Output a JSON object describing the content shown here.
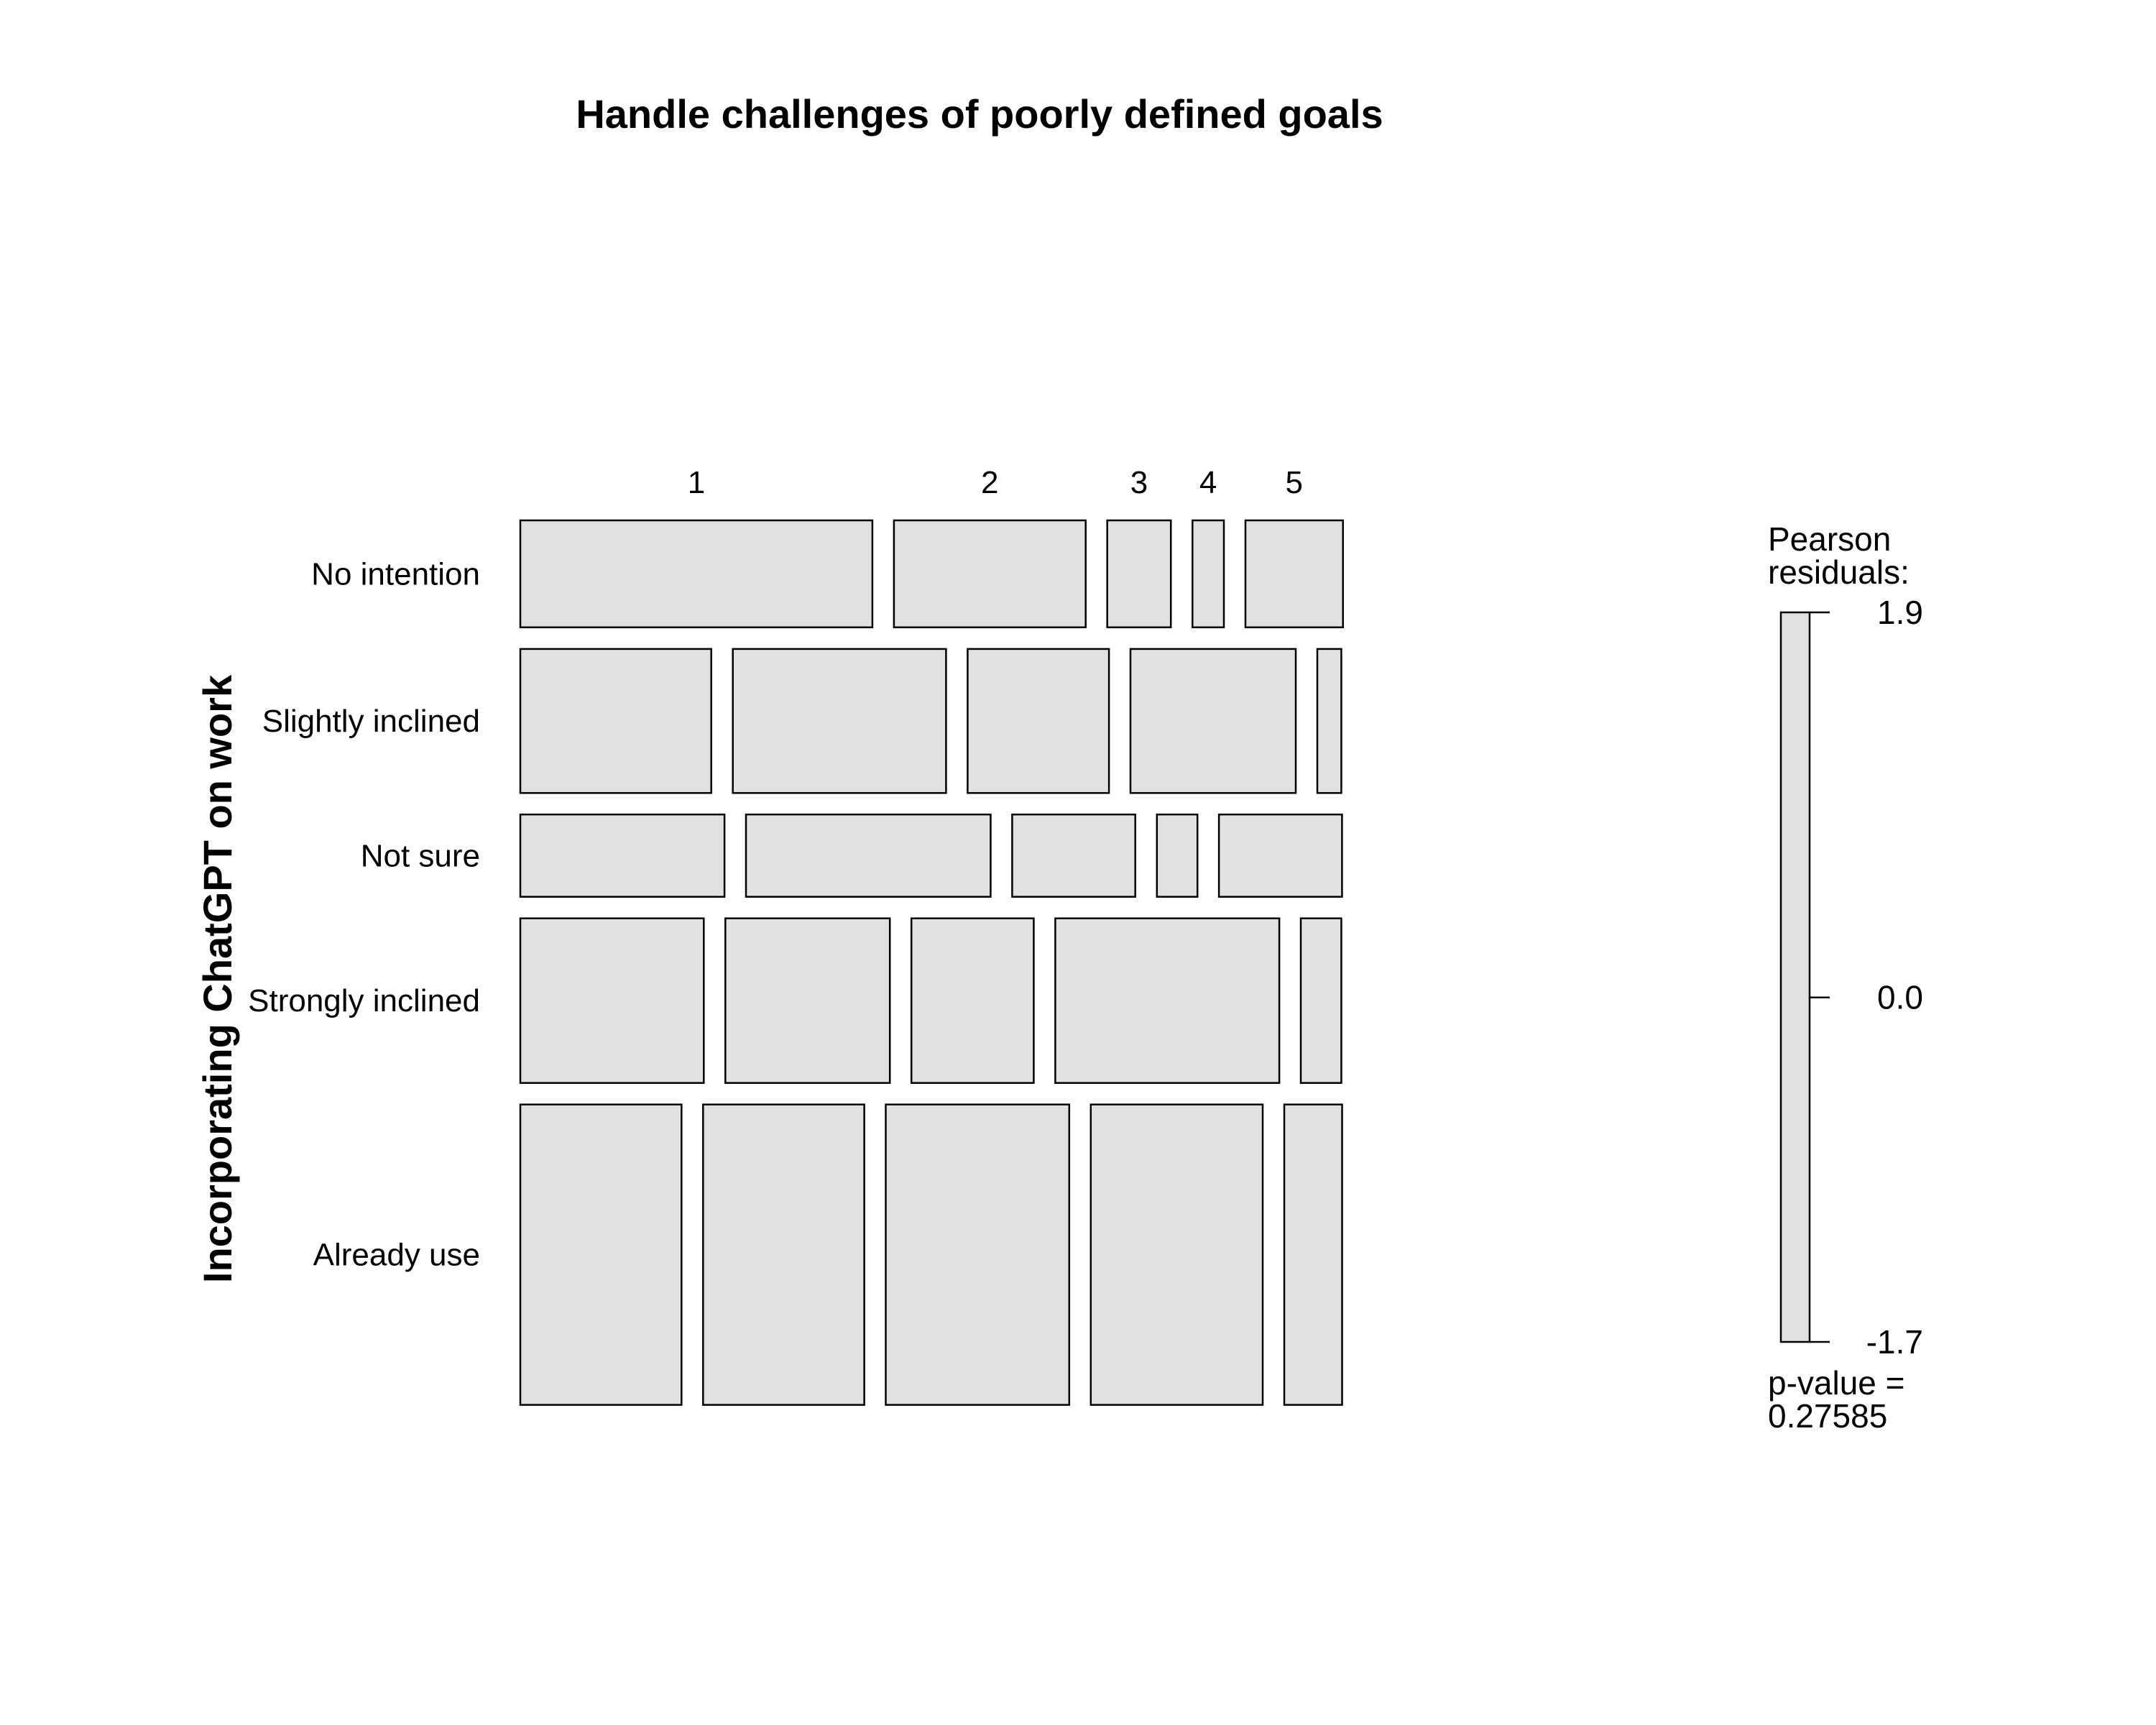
{
  "chart_data": {
    "type": "mosaic",
    "title": "Handle challenges of poorly defined goals",
    "ylabel": "Incorporating ChatGPT on work",
    "xlabel": "",
    "row_categories": [
      "No intention",
      "Slightly inclined",
      "Not sure",
      "Strongly inclined",
      "Already use"
    ],
    "column_categories": [
      "1",
      "2",
      "3",
      "4",
      "5"
    ],
    "row_proportions": [
      0.13,
      0.175,
      0.1,
      0.2,
      0.365
    ],
    "cell_proportions": [
      [
        0.426,
        0.232,
        0.077,
        0.038,
        0.118
      ],
      [
        0.231,
        0.258,
        0.171,
        0.2,
        0.029
      ],
      [
        0.247,
        0.296,
        0.149,
        0.049,
        0.149
      ],
      [
        0.222,
        0.199,
        0.148,
        0.271,
        0.049
      ],
      [
        0.195,
        0.195,
        0.222,
        0.208,
        0.07
      ]
    ],
    "fill_color": "#e1e1e1",
    "border_color": "#000000",
    "legend": {
      "title_lines": [
        "Pearson",
        "residuals:"
      ],
      "ticks": [
        "1.9",
        "0.0",
        "-1.7"
      ],
      "tick_values": [
        1.9,
        0.0,
        -1.7
      ],
      "range": [
        -1.7,
        1.9
      ],
      "pvalue_lines": [
        "p-value =",
        "0.27585"
      ],
      "placement": "right"
    }
  }
}
